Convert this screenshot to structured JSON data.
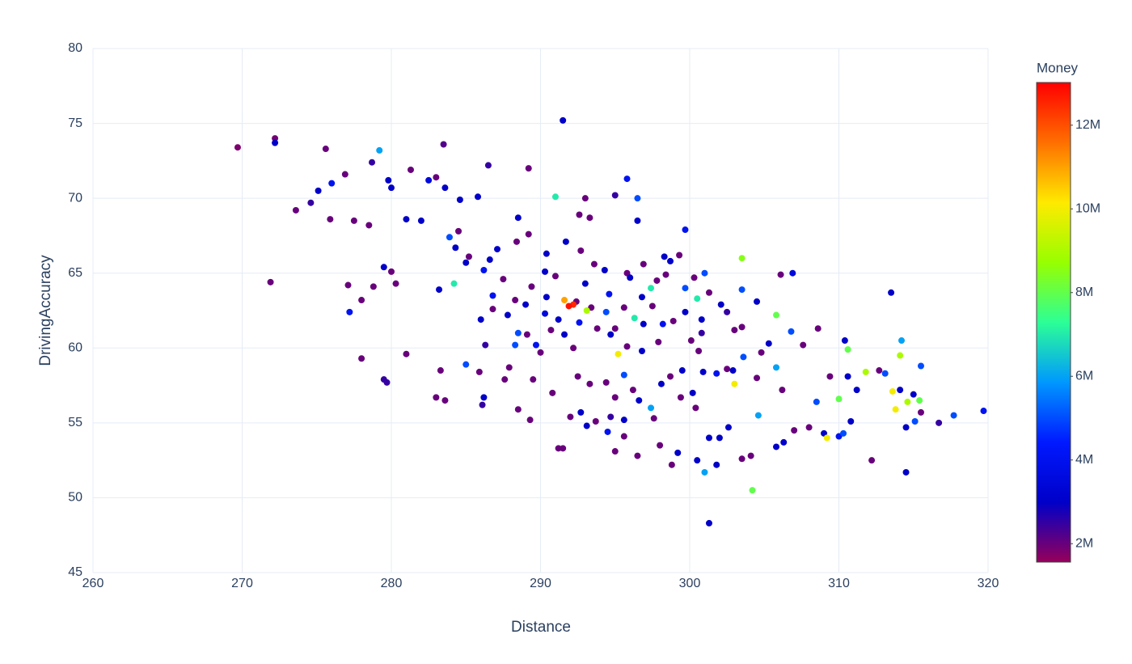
{
  "chart_data": {
    "type": "scatter",
    "x_label": "Distance",
    "y_label": "DrivingAccuracy",
    "colorbar_title": "Money",
    "xlim": [
      260,
      320
    ],
    "xticks": [
      260,
      270,
      280,
      290,
      300,
      310,
      320
    ],
    "ylim": [
      45,
      80
    ],
    "yticks": [
      45,
      50,
      55,
      60,
      65,
      70,
      75,
      80
    ],
    "grid": true,
    "colorlim": [
      1.56,
      13.02
    ],
    "colorticks": [
      {
        "value": 2,
        "label": "2M"
      },
      {
        "value": 4,
        "label": "4M"
      },
      {
        "value": 6,
        "label": "6M"
      },
      {
        "value": 8,
        "label": "8M"
      },
      {
        "value": 10,
        "label": "10M"
      },
      {
        "value": 12,
        "label": "12M"
      }
    ],
    "colorscale": [
      "#96005a",
      "#0000c8",
      "#0019ff",
      "#0098ff",
      "#2cff96",
      "#97ff00",
      "#ffea00",
      "#ff6f00",
      "#ff0000"
    ],
    "x": [
      269.7,
      272.2,
      272.2,
      271.9,
      275.6,
      279.2,
      283.5,
      291.5,
      286.5,
      289.2,
      281.3,
      278.7,
      276.9,
      276,
      275.1,
      274.6,
      273.6,
      275.9,
      277.5,
      278.5,
      279.8,
      280,
      282.5,
      283,
      284.6,
      285.8,
      283.6,
      288.5,
      291,
      295,
      293,
      295.8,
      296.5,
      296.5,
      299.7,
      281,
      282,
      283.9,
      284.3,
      285,
      286.2,
      284.2,
      283.2,
      279.5,
      280,
      280.3,
      278.8,
      277.1,
      277.2,
      278,
      278,
      279.5,
      279.7,
      281,
      283,
      283.6,
      283.3,
      285,
      285.9,
      286.1,
      286.2,
      287.6,
      288.5,
      289.3,
      290.8,
      291.2,
      291.5,
      292,
      292.7,
      293.1,
      294.5,
      295,
      295.6,
      296.5,
      298,
      298.8,
      299.2,
      300.5,
      301,
      301.3,
      301.8,
      303.5,
      304.1,
      304.2,
      305.8,
      306.3,
      307,
      308,
      309,
      309.2,
      310,
      310.3,
      312.2,
      314.5,
      314.5,
      315.5,
      316.7,
      317.7,
      319.7,
      315.4,
      314.6,
      313.8,
      313.6,
      314.1,
      315,
      315.1,
      315.5,
      314.1,
      314.2,
      313.5,
      313.1,
      311.8,
      312.7,
      310.6,
      310.4,
      310.6,
      309.4,
      310,
      311.2,
      310.8,
      308.5,
      308.6,
      307.6,
      306.8,
      306.9,
      306.1,
      305.8,
      304.5,
      303.5,
      303.5,
      303,
      303.5,
      303,
      304.5,
      304.6,
      305.8,
      306.2,
      305.3,
      304.8,
      303.6,
      302.5,
      302.6,
      302,
      301.3,
      300.4,
      299.4,
      300.2,
      300.9,
      300.1,
      299.7,
      299.7,
      300.5,
      301,
      301.3,
      302.1,
      302.5,
      300.8,
      300.8,
      298.9,
      298.2,
      297.5,
      297.4,
      296.8,
      297.8,
      298.7,
      299.3,
      298.3,
      296.3,
      295,
      294.4,
      293.8,
      293.4,
      293.1,
      292.4,
      292.2,
      291.9,
      291.6,
      293,
      294.3,
      293.6,
      292.7,
      292.6,
      293.3,
      291.7,
      290.3,
      289.4,
      289,
      288.3,
      287.8,
      288.5,
      289.1,
      289.7,
      288.3,
      287.9,
      286.3,
      286,
      286.8,
      286.8,
      287.5,
      286.6,
      285.2,
      284.5,
      287.1,
      288.4,
      289.2,
      290.4,
      291,
      290.4,
      290.3,
      290.7,
      291.2,
      292.6,
      294.7,
      295.2,
      295.6,
      295.8,
      296.8,
      297.4,
      297.6,
      298.1,
      298.7,
      296.2,
      295,
      294.4,
      293.3,
      292.5,
      292.2,
      291.6,
      290,
      289.5,
      295.6,
      294.7,
      293.7,
      296.6,
      299.5,
      300.6,
      301.8,
      302.9,
      297.9,
      296.9,
      295.6,
      294.6,
      295.8,
      296,
      296.9,
      298.4,
      300.3
    ],
    "values": [
      73.4,
      74,
      73.7,
      64.4,
      73.3,
      73.2,
      73.6,
      75.2,
      72.2,
      72,
      71.9,
      72.4,
      71.6,
      71,
      70.5,
      69.7,
      69.2,
      68.6,
      68.5,
      68.2,
      71.2,
      70.7,
      71.2,
      71.4,
      69.9,
      70.1,
      70.7,
      68.7,
      70.1,
      70.2,
      70,
      71.3,
      70,
      68.5,
      67.9,
      68.6,
      68.5,
      67.4,
      66.7,
      65.7,
      65.2,
      64.3,
      63.9,
      65.4,
      65.1,
      64.3,
      64.1,
      64.2,
      62.4,
      63.2,
      59.3,
      57.9,
      57.7,
      59.6,
      56.7,
      56.5,
      58.5,
      58.9,
      58.4,
      56.2,
      56.7,
      57.9,
      55.9,
      55.2,
      57,
      53.3,
      53.3,
      55.4,
      55.7,
      54.8,
      54.4,
      53.1,
      54.1,
      52.8,
      53.5,
      52.2,
      53,
      52.5,
      51.7,
      48.3,
      52.2,
      52.6,
      52.8,
      50.5,
      53.4,
      53.7,
      54.5,
      54.7,
      54.3,
      54,
      54.1,
      54.3,
      52.5,
      51.7,
      54.7,
      55.7,
      55,
      55.5,
      55.8,
      56.5,
      56.4,
      55.9,
      57.1,
      57.2,
      56.9,
      55.1,
      58.8,
      59.5,
      60.5,
      63.7,
      58.3,
      58.4,
      58.5,
      59.9,
      60.5,
      58.1,
      58.1,
      56.6,
      57.2,
      55.1,
      56.4,
      61.3,
      60.2,
      61.1,
      65,
      64.9,
      62.2,
      63.1,
      63.9,
      66,
      61.2,
      61.4,
      57.6,
      58,
      55.5,
      58.7,
      57.2,
      60.3,
      59.7,
      59.4,
      58.6,
      54.7,
      54,
      54,
      56,
      56.7,
      57,
      58.4,
      60.5,
      62.4,
      64,
      63.3,
      65,
      63.7,
      62.9,
      62.4,
      61.9,
      61,
      61.8,
      61.6,
      62.8,
      64,
      63.4,
      64.5,
      65.8,
      66.2,
      66.1,
      62,
      61.3,
      62.4,
      61.3,
      62.7,
      62.5,
      63.1,
      62.9,
      62.8,
      63.2,
      64.3,
      65.2,
      65.6,
      66.5,
      68.9,
      68.7,
      67.1,
      65.1,
      64.1,
      62.9,
      63.2,
      62.2,
      61,
      60.9,
      60.2,
      60.2,
      58.7,
      60.2,
      61.9,
      62.6,
      63.5,
      64.6,
      65.9,
      66.1,
      67.8,
      66.6,
      67.1,
      67.6,
      66.3,
      64.8,
      63.4,
      62.3,
      61.2,
      61.9,
      61.7,
      60.9,
      59.6,
      58.2,
      60.1,
      59.8,
      56,
      55.3,
      57.6,
      58.1,
      57.2,
      56.7,
      57.7,
      57.6,
      58.1,
      60,
      60.9,
      59.7,
      57.9,
      55.2,
      55.4,
      55.1,
      56.5,
      58.5,
      59.8,
      58.3,
      58.5,
      60.4,
      61.6,
      62.7,
      63.6,
      65,
      64.7,
      65.6,
      64.9,
      64.7
    ],
    "money": [
      1.8,
      1.9,
      3,
      2,
      2,
      6,
      2.2,
      3,
      2.5,
      2,
      2,
      2.5,
      2,
      4,
      3,
      2.5,
      2,
      2,
      2,
      2,
      3,
      3,
      3.5,
      2,
      3,
      3,
      3,
      3,
      7,
      2.5,
      2,
      4,
      5,
      3,
      4,
      3,
      3,
      5,
      3,
      3,
      4,
      7,
      3,
      3,
      2,
      2,
      2,
      2,
      4,
      2,
      2,
      2.5,
      2.5,
      2,
      2,
      2,
      2,
      5,
      2,
      2.5,
      3,
      2,
      2,
      2,
      2,
      2,
      2,
      2,
      3,
      3,
      4,
      2,
      2,
      2,
      2,
      2,
      3,
      3,
      6,
      3,
      3,
      2,
      2,
      8,
      3,
      3,
      2,
      2,
      3,
      10,
      4,
      5,
      2,
      3,
      3,
      2,
      2.5,
      5,
      4,
      8,
      9,
      10,
      10,
      3,
      3,
      5,
      5,
      9,
      6,
      3,
      5,
      9,
      2,
      8,
      3,
      3,
      2,
      8,
      3,
      3,
      5,
      2,
      2,
      5,
      3.5,
      2,
      8,
      3,
      5,
      8.5,
      2,
      2,
      10,
      2,
      6,
      6,
      2,
      3,
      2,
      5,
      2,
      3,
      3,
      3,
      2,
      2,
      3,
      3,
      2,
      3,
      5,
      7,
      5,
      2,
      3,
      2.5,
      3,
      2.5,
      2,
      4,
      2,
      7,
      3,
      2,
      3,
      2,
      3,
      7,
      2,
      5,
      2,
      2,
      9,
      2,
      12.5,
      12.8,
      11,
      3,
      3,
      2,
      2,
      2,
      2,
      3,
      3,
      2,
      3,
      2,
      3,
      5,
      2,
      4,
      5,
      2,
      2.5,
      3,
      2,
      4,
      2,
      3,
      2,
      2,
      3,
      2,
      2,
      3,
      2,
      3,
      3.5,
      2,
      3,
      4,
      3,
      10,
      5,
      2,
      3,
      6,
      2,
      3,
      2,
      2,
      2,
      2,
      2,
      2,
      2,
      3,
      2,
      2,
      3,
      2.5,
      2,
      3,
      3,
      2,
      4,
      3,
      2,
      3,
      2,
      4,
      2,
      3,
      2,
      2,
      2
    ]
  }
}
